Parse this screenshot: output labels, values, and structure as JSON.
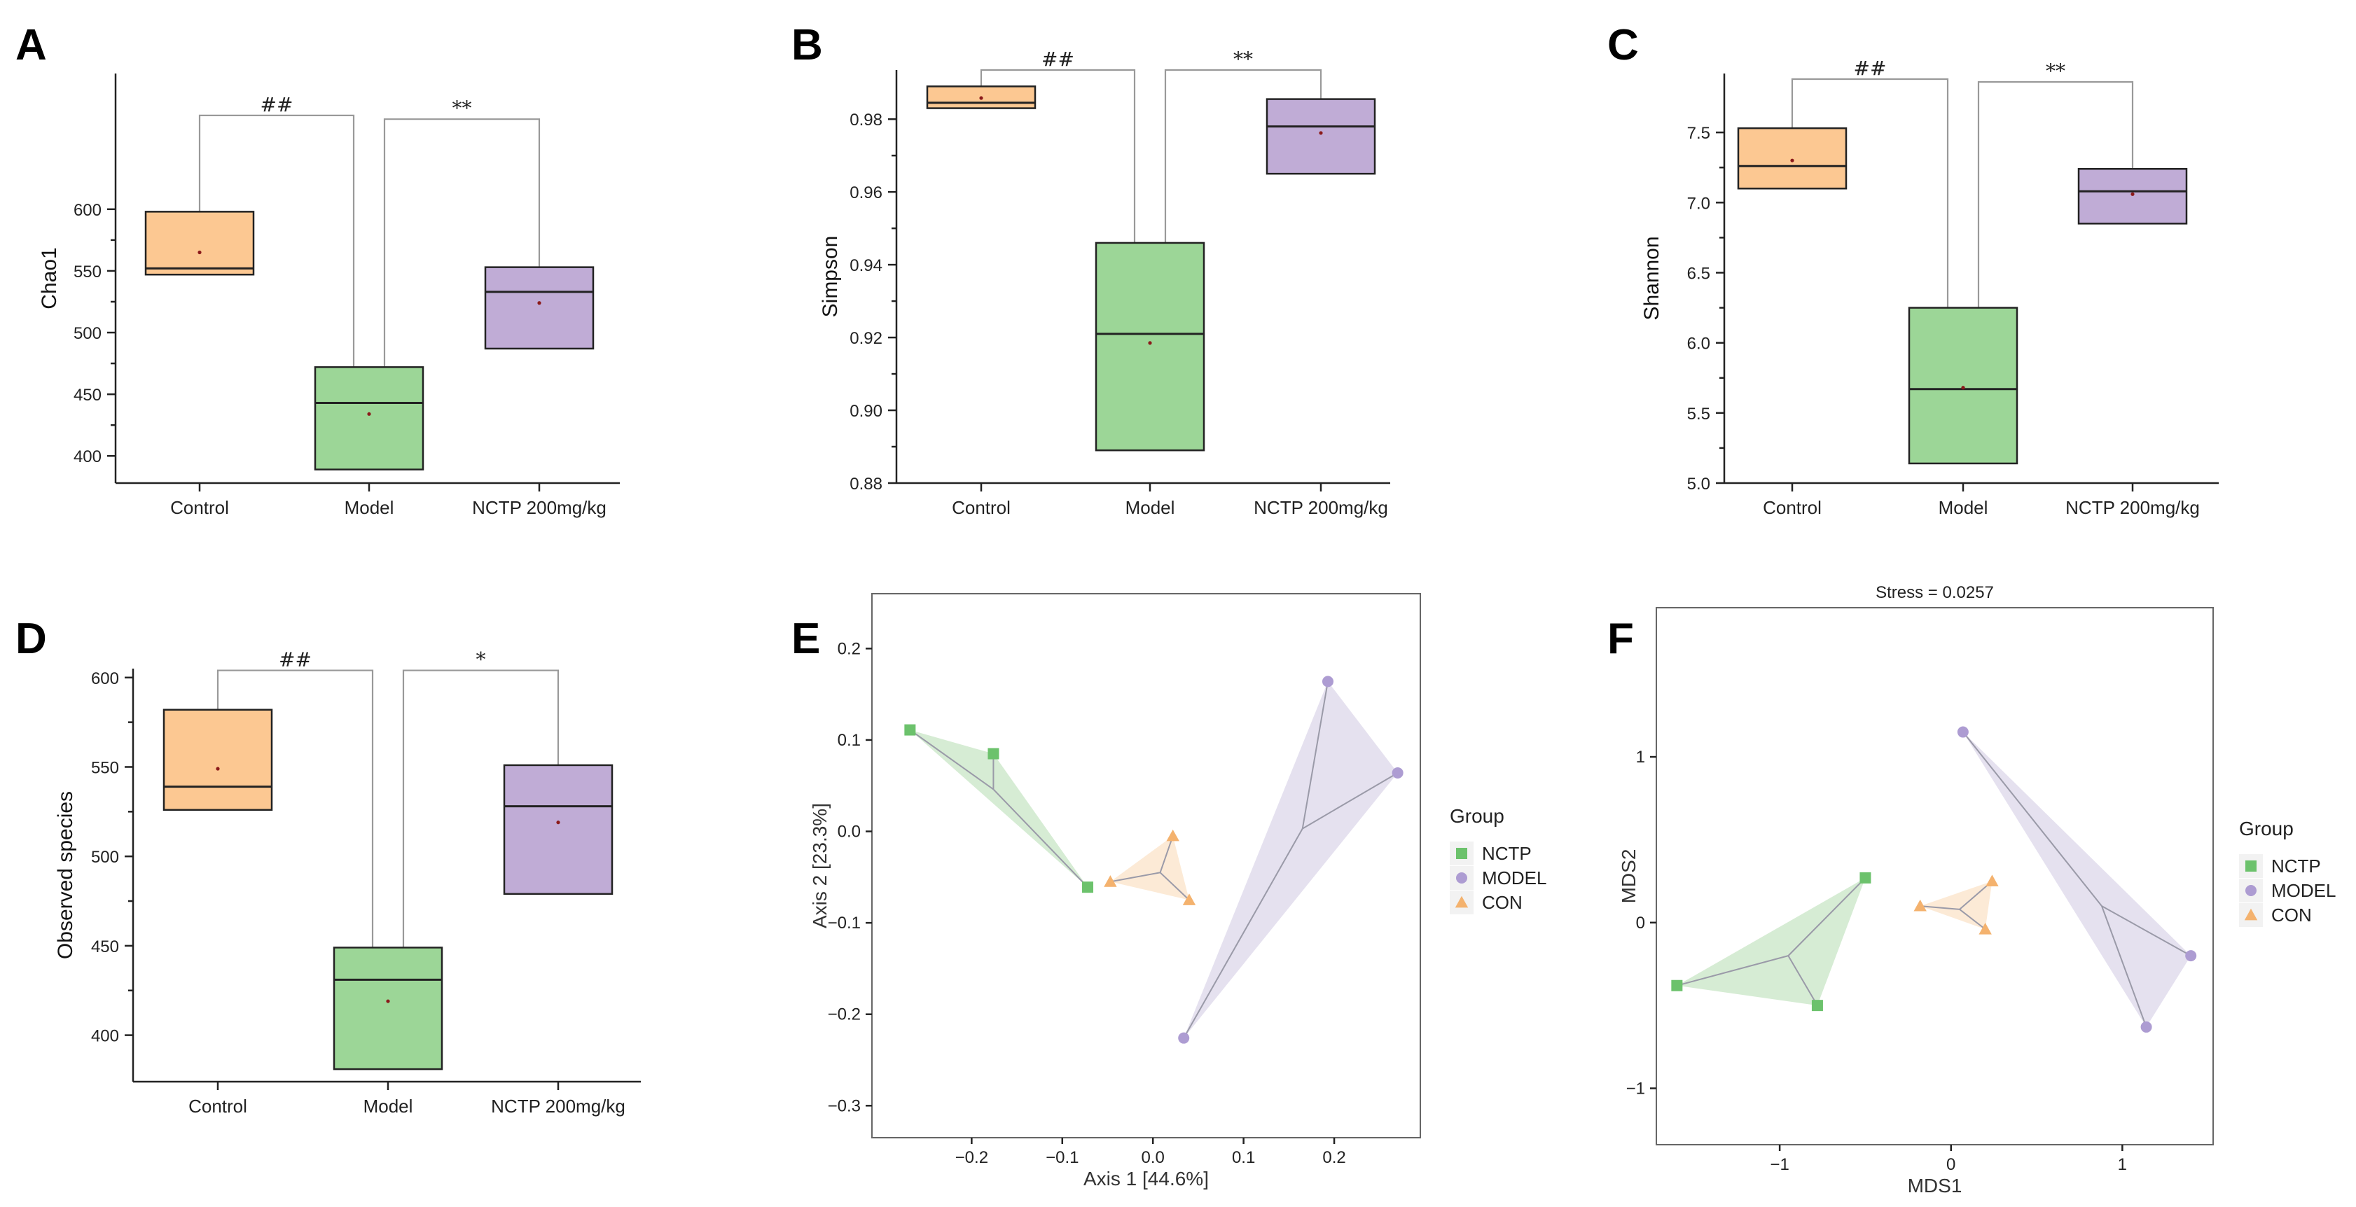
{
  "colors": {
    "control": "#fcc892",
    "model": "#9cd697",
    "nctp": "#c0acd6",
    "nctp_point": "#6cc26c",
    "model_point": "#ad9cd2",
    "con_point": "#f4b26e",
    "nctp_hull": "#cfe9cc",
    "model_hull": "#e0dcec",
    "con_hull": "#fbe6cf"
  },
  "chart_data": [
    {
      "id": "A",
      "type": "box",
      "letter": "A",
      "ylabel": "Chao1",
      "categories": [
        "Control",
        "Model",
        "NCTP 200mg/kg"
      ],
      "ylim": [
        378,
        710
      ],
      "yticks": [
        400,
        450,
        500,
        550,
        600
      ],
      "ytick_labels": [
        "400",
        "450",
        "500",
        "550",
        "600"
      ],
      "boxes": [
        {
          "q1": 547,
          "median": 552,
          "q3": 598,
          "mean": 565
        },
        {
          "q1": 389,
          "median": 443,
          "q3": 472,
          "mean": 434
        },
        {
          "q1": 487,
          "median": 533,
          "q3": 553,
          "mean": 524
        }
      ],
      "brackets": [
        {
          "from": 0,
          "to": 1,
          "label": "##",
          "top": 676,
          "sig_y": 680
        },
        {
          "from": 1,
          "to": 2,
          "label": "**",
          "top": 673,
          "sig_y": 677
        }
      ]
    },
    {
      "id": "B",
      "type": "box",
      "letter": "B",
      "ylabel": "Simpson",
      "categories": [
        "Control",
        "Model",
        "NCTP 200mg/kg"
      ],
      "ylim": [
        0.88,
        0.9935
      ],
      "yticks": [
        0.88,
        0.9,
        0.92,
        0.94,
        0.96,
        0.98
      ],
      "ytick_labels": [
        "0.88",
        "0.90",
        "0.92",
        "0.94",
        "0.96",
        "0.98"
      ],
      "boxes": [
        {
          "q1": 0.983,
          "median": 0.9845,
          "q3": 0.989,
          "mean": 0.9858
        },
        {
          "q1": 0.889,
          "median": 0.921,
          "q3": 0.946,
          "mean": 0.9185
        },
        {
          "q1": 0.965,
          "median": 0.978,
          "q3": 0.9855,
          "mean": 0.9762
        }
      ],
      "brackets": [
        {
          "from": 0,
          "to": 1,
          "label": "##",
          "top": 0.9935,
          "sig_y": 0.9948
        },
        {
          "from": 1,
          "to": 2,
          "label": "**",
          "top": 0.9935,
          "sig_y": 0.9948
        }
      ]
    },
    {
      "id": "C",
      "type": "box",
      "letter": "C",
      "ylabel": "Shannon",
      "categories": [
        "Control",
        "Model",
        "NCTP 200mg/kg"
      ],
      "ylim": [
        5.0,
        7.92
      ],
      "yticks": [
        5.0,
        5.5,
        6.0,
        6.5,
        7.0,
        7.5
      ],
      "ytick_labels": [
        "5.0",
        "5.5",
        "6.0",
        "6.5",
        "7.0",
        "7.5"
      ],
      "boxes": [
        {
          "q1": 7.1,
          "median": 7.26,
          "q3": 7.53,
          "mean": 7.3
        },
        {
          "q1": 5.14,
          "median": 5.67,
          "q3": 6.25,
          "mean": 5.68
        },
        {
          "q1": 6.85,
          "median": 7.08,
          "q3": 7.24,
          "mean": 7.06
        }
      ],
      "brackets": [
        {
          "from": 0,
          "to": 1,
          "label": "##",
          "top": 7.88,
          "sig_y": 7.91
        },
        {
          "from": 1,
          "to": 2,
          "label": "**",
          "top": 7.86,
          "sig_y": 7.89
        }
      ]
    },
    {
      "id": "D",
      "type": "box",
      "letter": "D",
      "ylabel": "Observed species",
      "categories": [
        "Control",
        "Model",
        "NCTP 200mg/kg"
      ],
      "ylim": [
        374,
        605
      ],
      "yticks": [
        400,
        450,
        500,
        550,
        600
      ],
      "ytick_labels": [
        "400",
        "450",
        "500",
        "550",
        "600"
      ],
      "boxes": [
        {
          "q1": 526,
          "median": 539,
          "q3": 582,
          "mean": 549
        },
        {
          "q1": 381,
          "median": 431,
          "q3": 449,
          "mean": 419
        },
        {
          "q1": 479,
          "median": 528,
          "q3": 551,
          "mean": 519
        }
      ],
      "brackets": [
        {
          "from": 0,
          "to": 1,
          "label": "##",
          "top": 604,
          "sig_y": 607
        },
        {
          "from": 1,
          "to": 2,
          "label": "*",
          "top": 604,
          "sig_y": 607
        }
      ]
    },
    {
      "id": "E",
      "type": "scatter",
      "letter": "E",
      "xlabel": "Axis 1 [44.6%]",
      "ylabel": "Axis 2 [23.3%]",
      "title": "",
      "xlim": [
        -0.31,
        0.295
      ],
      "ylim": [
        -0.335,
        0.26
      ],
      "xticks": [
        -0.2,
        -0.1,
        0.0,
        0.1,
        0.2
      ],
      "xtick_labels": [
        "−0.2",
        "−0.1",
        "0.0",
        "0.1",
        "0.2"
      ],
      "yticks": [
        -0.3,
        -0.2,
        -0.1,
        0.0,
        0.1,
        0.2
      ],
      "ytick_labels": [
        "−0.3",
        "−0.2",
        "−0.1",
        "0.0",
        "0.1",
        "0.2"
      ],
      "groups": [
        {
          "name": "NCTP",
          "shape": "square",
          "centroid": [
            -0.176,
            0.046
          ],
          "points": [
            [
              -0.268,
              0.111
            ],
            [
              -0.176,
              0.085
            ],
            [
              -0.072,
              -0.061
            ]
          ]
        },
        {
          "name": "MODEL",
          "shape": "circle",
          "centroid": [
            0.165,
            0.003
          ],
          "points": [
            [
              0.193,
              0.164
            ],
            [
              0.27,
              0.064
            ],
            [
              0.034,
              -0.226
            ]
          ]
        },
        {
          "name": "CON",
          "shape": "triangle",
          "centroid": [
            0.008,
            -0.045
          ],
          "points": [
            [
              0.022,
              -0.005
            ],
            [
              -0.047,
              -0.055
            ],
            [
              0.04,
              -0.075
            ]
          ]
        }
      ],
      "legend": {
        "title": "Group",
        "entries": [
          "NCTP",
          "MODEL",
          "CON"
        ]
      }
    },
    {
      "id": "F",
      "type": "scatter",
      "letter": "F",
      "xlabel": "MDS1",
      "ylabel": "MDS2",
      "title": "Stress = 0.0257",
      "xlim": [
        -1.72,
        1.53
      ],
      "ylim": [
        -1.34,
        1.9
      ],
      "xticks": [
        -1,
        0,
        1
      ],
      "xtick_labels": [
        "−1",
        "0",
        "1"
      ],
      "yticks": [
        -1,
        0,
        1
      ],
      "ytick_labels": [
        "−1",
        "0",
        "1"
      ],
      "groups": [
        {
          "name": "NCTP",
          "shape": "square",
          "centroid": [
            -0.95,
            -0.2
          ],
          "points": [
            [
              -1.6,
              -0.38
            ],
            [
              -0.5,
              0.27
            ],
            [
              -0.78,
              -0.5
            ]
          ]
        },
        {
          "name": "MODEL",
          "shape": "circle",
          "centroid": [
            0.88,
            0.1
          ],
          "points": [
            [
              0.07,
              1.15
            ],
            [
              1.4,
              -0.2
            ],
            [
              1.14,
              -0.63
            ]
          ]
        },
        {
          "name": "CON",
          "shape": "triangle",
          "centroid": [
            0.05,
            0.08
          ],
          "points": [
            [
              -0.18,
              0.1
            ],
            [
              0.24,
              0.25
            ],
            [
              0.2,
              -0.04
            ]
          ]
        }
      ],
      "legend": {
        "title": "Group",
        "entries": [
          "NCTP",
          "MODEL",
          "CON"
        ]
      }
    }
  ]
}
